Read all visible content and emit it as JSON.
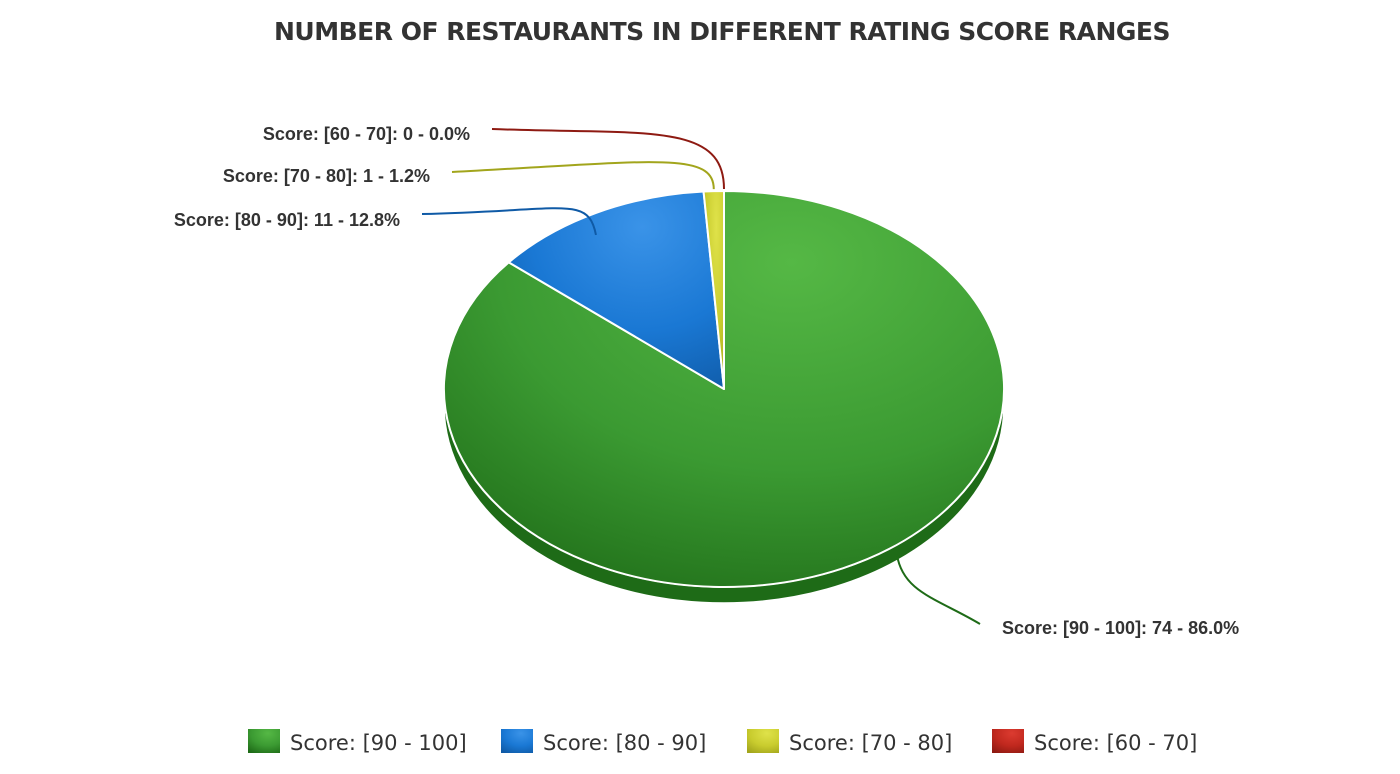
{
  "chart_data": {
    "type": "pie",
    "title": "NUMBER OF RESTAURANTS IN DIFFERENT RATING SCORE RANGES",
    "three_d": true,
    "legend_position": "bottom",
    "slices": [
      {
        "name": "Score: [90 - 100]",
        "value": 74,
        "percent": 86.0,
        "label": "Score: [90 - 100]: 74 - 86.0%",
        "color": "#3b9a32",
        "dark": "#1e6b17",
        "light": "#55b845"
      },
      {
        "name": "Score: [80 - 90]",
        "value": 11,
        "percent": 12.8,
        "label": "Score: [80 - 90]: 11 - 12.8%",
        "color": "#1a78d4",
        "dark": "#0f5aa6",
        "light": "#3a93e8"
      },
      {
        "name": "Score: [70 - 80]",
        "value": 1,
        "percent": 1.2,
        "label": "Score: [70 - 80]: 1 - 1.2%",
        "color": "#c9cc2e",
        "dark": "#a2a51c",
        "light": "#dfe24a"
      },
      {
        "name": "Score: [60 - 70]",
        "value": 0,
        "percent": 0.0,
        "label": "Score: [60 - 70]: 0 - 0.0%",
        "color": "#c0281e",
        "dark": "#8e1a12",
        "light": "#dc3b30"
      }
    ]
  }
}
